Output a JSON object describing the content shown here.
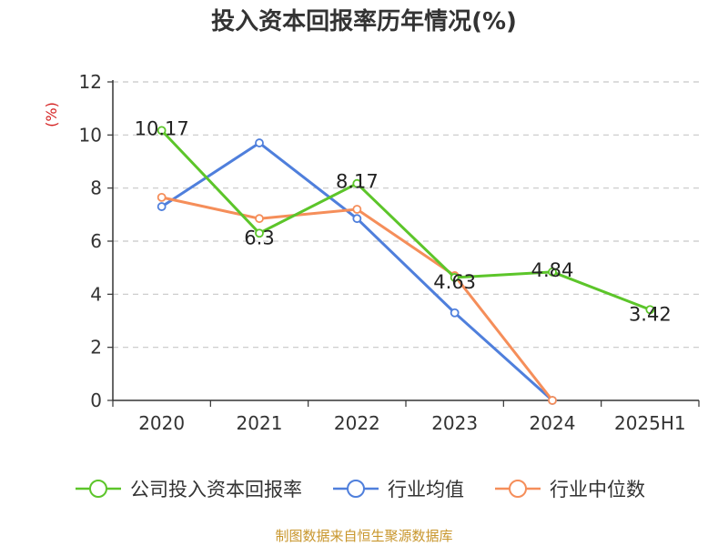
{
  "chart_data": {
    "type": "line",
    "title": "投入资本回报率历年情况(%)",
    "ylabel": "(%)",
    "categories": [
      "2020",
      "2021",
      "2022",
      "2023",
      "2024",
      "2025H1"
    ],
    "ylim": [
      0,
      12
    ],
    "yticks": [
      "0",
      "2",
      "4",
      "6",
      "8",
      "10",
      "12"
    ],
    "grid": true,
    "legend_position": "bottom",
    "series": [
      {
        "name": "公司投入资本回报率",
        "color": "#5cc52a",
        "values": [
          10.17,
          6.3,
          8.17,
          4.63,
          4.84,
          3.42
        ],
        "labels": [
          "10.17",
          "6.3",
          "8.17",
          "4.63",
          "4.84",
          "3.42"
        ]
      },
      {
        "name": "行业均值",
        "color": "#4f7fdc",
        "values": [
          7.3,
          9.7,
          6.85,
          3.3,
          0,
          null
        ]
      },
      {
        "name": "行业中位数",
        "color": "#f58e5a",
        "values": [
          7.65,
          6.85,
          7.2,
          4.7,
          0,
          null
        ]
      }
    ]
  },
  "source": {
    "text": "制图数据来自恒生聚源数据库",
    "color": "#c8962c"
  },
  "ylabel_color": "#d42020"
}
